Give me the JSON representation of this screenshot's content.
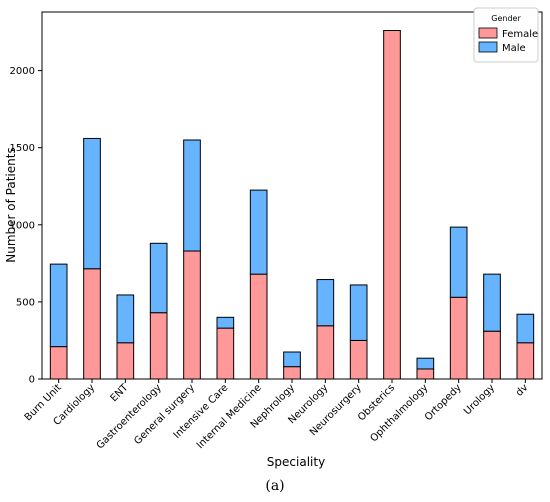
{
  "chart_data": {
    "type": "bar",
    "stacked": true,
    "categories": [
      "Burn Unit",
      "Cardiology",
      "ENT",
      "Gastroenterology",
      "General surgery",
      "Intensive Care",
      "Internal Medicine",
      "Nephrology",
      "Neurology",
      "Neurosurgery",
      "Obsterics",
      "Ophthalmology",
      "Ortopedy",
      "Urology",
      "dv"
    ],
    "series": [
      {
        "name": "Female",
        "color": "#ff9999",
        "values": [
          210,
          715,
          235,
          430,
          830,
          330,
          680,
          80,
          345,
          250,
          2260,
          65,
          530,
          310,
          235
        ]
      },
      {
        "name": "Male",
        "color": "#66b3ff",
        "values": [
          535,
          845,
          310,
          450,
          720,
          70,
          545,
          95,
          300,
          360,
          0,
          70,
          455,
          370,
          185
        ]
      }
    ],
    "xlabel": "Speciality",
    "ylabel": "Number of Patients",
    "ylim": [
      0,
      2380
    ],
    "yticks": [
      0,
      500,
      1000,
      1500,
      2000
    ],
    "grid": false,
    "legend": {
      "title": "Gender",
      "placement": "top-right"
    }
  },
  "caption": "(a)"
}
